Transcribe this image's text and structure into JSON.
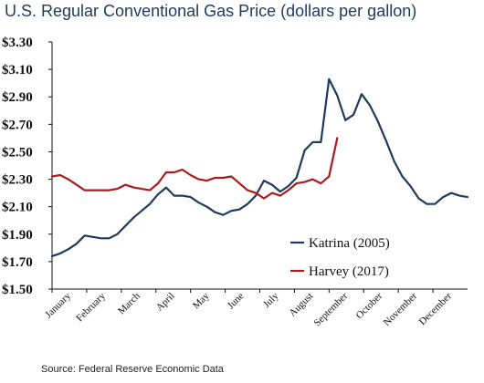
{
  "header": {
    "title": "U.S. Regular Conventional Gas Price (dollars per gallon)"
  },
  "footer": {
    "source": "Source: Federal Reserve Economic Data"
  },
  "chart_data": {
    "type": "line",
    "title": "U.S. Regular Conventional Gas Price (dollars per gallon)",
    "xlabel": "",
    "ylabel": "",
    "ylim": [
      1.5,
      3.3
    ],
    "y_ticks": [
      "$1.50",
      "$1.70",
      "$1.90",
      "$2.10",
      "$2.30",
      "$2.50",
      "$2.70",
      "$2.90",
      "$3.10",
      "$3.30"
    ],
    "y_tick_values": [
      1.5,
      1.7,
      1.9,
      2.1,
      2.3,
      2.5,
      2.7,
      2.9,
      3.1,
      3.3
    ],
    "x_ticks": [
      "January",
      "February",
      "March",
      "April",
      "May",
      "June",
      "July",
      "August",
      "September",
      "October",
      "November",
      "December"
    ],
    "x_domain": [
      1,
      52
    ],
    "grid": false,
    "legend_position": "lower-right",
    "series": [
      {
        "name": "Katrina (2005)",
        "color": "#1f3a5f",
        "x": [
          1,
          2,
          3,
          4,
          5,
          6,
          7,
          8,
          9,
          10,
          11,
          12,
          13,
          14,
          15,
          16,
          17,
          18,
          19,
          20,
          21,
          22,
          23,
          24,
          25,
          26,
          27,
          28,
          29,
          30,
          31,
          32,
          33,
          34,
          35,
          36,
          37,
          38,
          39,
          40,
          41,
          42,
          43,
          44,
          45,
          46,
          47,
          48,
          49,
          50,
          51,
          52
        ],
        "values": [
          1.74,
          1.76,
          1.79,
          1.83,
          1.89,
          1.88,
          1.87,
          1.87,
          1.9,
          1.96,
          2.02,
          2.07,
          2.12,
          2.19,
          2.24,
          2.18,
          2.18,
          2.17,
          2.13,
          2.1,
          2.06,
          2.04,
          2.07,
          2.08,
          2.12,
          2.18,
          2.29,
          2.26,
          2.21,
          2.25,
          2.31,
          2.51,
          2.57,
          2.57,
          3.03,
          2.91,
          2.73,
          2.77,
          2.92,
          2.84,
          2.72,
          2.58,
          2.43,
          2.32,
          2.25,
          2.16,
          2.12,
          2.12,
          2.17,
          2.2,
          2.18,
          2.17
        ]
      },
      {
        "name": "Harvey (2017)",
        "color": "#a81c1c",
        "x": [
          1,
          2,
          3,
          4,
          5,
          6,
          7,
          8,
          9,
          10,
          11,
          12,
          13,
          14,
          15,
          16,
          17,
          18,
          19,
          20,
          21,
          22,
          23,
          24,
          25,
          26,
          27,
          28,
          29,
          30,
          31,
          32,
          33,
          34,
          35
        ],
        "values": [
          2.32,
          2.33,
          2.3,
          2.26,
          2.22,
          2.22,
          2.22,
          2.22,
          2.23,
          2.26,
          2.24,
          2.23,
          2.22,
          2.27,
          2.35,
          2.35,
          2.37,
          2.33,
          2.3,
          2.29,
          2.31,
          2.31,
          2.32,
          2.27,
          2.22,
          2.2,
          2.16,
          2.2,
          2.18,
          2.22,
          2.27,
          2.28,
          2.3,
          2.27,
          2.32
        ]
      }
    ],
    "harvey_extension": {
      "x": [
        35,
        36
      ],
      "values": [
        2.32,
        2.6
      ]
    }
  }
}
